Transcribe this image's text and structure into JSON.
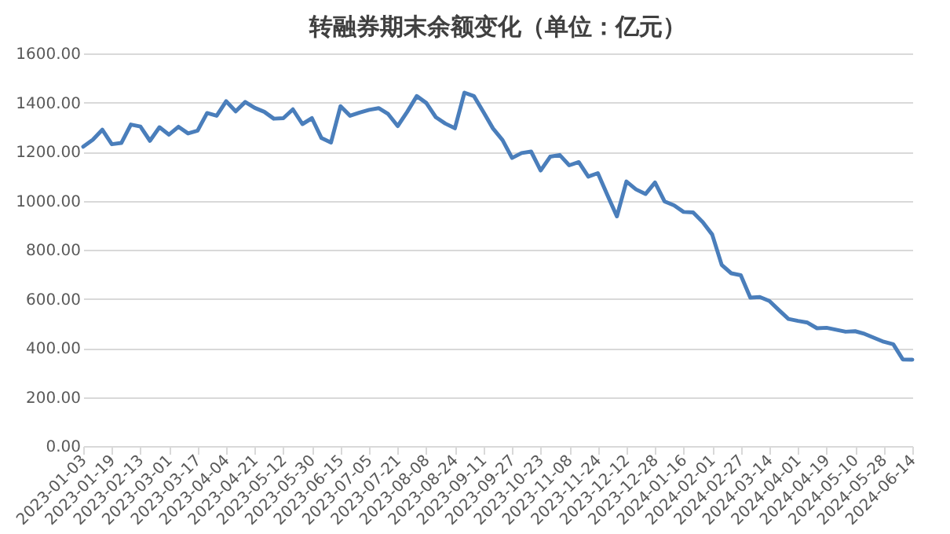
{
  "chart_data": {
    "type": "line",
    "title": "转融券期末余额变化（单位：亿元）",
    "categories": [
      "2023-01-03",
      null,
      null,
      "2023-01-19",
      null,
      null,
      "2023-02-13",
      null,
      null,
      "2023-03-01",
      null,
      null,
      "2023-03-17",
      null,
      null,
      "2023-04-04",
      null,
      null,
      "2023-04-21",
      null,
      null,
      "2023-05-12",
      null,
      null,
      "2023-05-30",
      null,
      null,
      "2023-06-15",
      null,
      null,
      "2023-07-05",
      null,
      null,
      "2023-07-21",
      null,
      null,
      "2023-08-08",
      null,
      null,
      "2023-08-24",
      null,
      null,
      "2023-09-11",
      null,
      null,
      "2023-09-27",
      null,
      null,
      "2023-10-23",
      null,
      null,
      "2023-11-08",
      null,
      null,
      "2023-11-24",
      null,
      null,
      "2023-12-12",
      null,
      null,
      "2023-12-28",
      null,
      null,
      "2024-01-16",
      null,
      null,
      "2024-02-01",
      null,
      null,
      "2024-02-27",
      null,
      null,
      "2024-03-14",
      null,
      null,
      "2024-04-01",
      null,
      null,
      "2024-04-19",
      null,
      null,
      "2024-05-10",
      null,
      null,
      "2024-05-28",
      null,
      null,
      "2024-06-14"
    ],
    "series": [
      {
        "color": "#4a7ebb",
        "values": [
          1220,
          1248,
          1289,
          1230,
          1235,
          1310,
          1302,
          1244,
          1299,
          1269,
          1301,
          1274,
          1285,
          1357,
          1346,
          1405,
          1364,
          1402,
          1378,
          1362,
          1334,
          1336,
          1372,
          1312,
          1336,
          1255,
          1237,
          1385,
          1346,
          1359,
          1370,
          1377,
          1353,
          1304,
          1362,
          1426,
          1398,
          1340,
          1314,
          1295,
          1440,
          1426,
          1361,
          1294,
          1247,
          1174,
          1194,
          1200,
          1123,
          1179,
          1186,
          1144,
          1157,
          1098,
          1112,
          1023,
          936,
          1078,
          1046,
          1027,
          1074,
          997,
          981,
          954,
          952,
          913,
          862,
          738,
          704,
          696,
          605,
          607,
          591,
          554,
          518,
          510,
          503,
          480,
          482,
          474,
          466,
          468,
          457,
          441,
          425,
          415,
          353,
          352
        ]
      }
    ],
    "ylim": [
      0,
      1600
    ],
    "yticks": [
      {
        "value": 0,
        "label": "0.00"
      },
      {
        "value": 200,
        "label": "200.00"
      },
      {
        "value": 400,
        "label": "400.00"
      },
      {
        "value": 600,
        "label": "600.00"
      },
      {
        "value": 800,
        "label": "800.00"
      },
      {
        "value": 1000,
        "label": "1000.00"
      },
      {
        "value": 1200,
        "label": "1200.00"
      },
      {
        "value": 1400,
        "label": "1400.00"
      },
      {
        "value": 1600,
        "label": "1600.00"
      }
    ],
    "grid": "y",
    "marker": "none",
    "line_style": "solid"
  }
}
